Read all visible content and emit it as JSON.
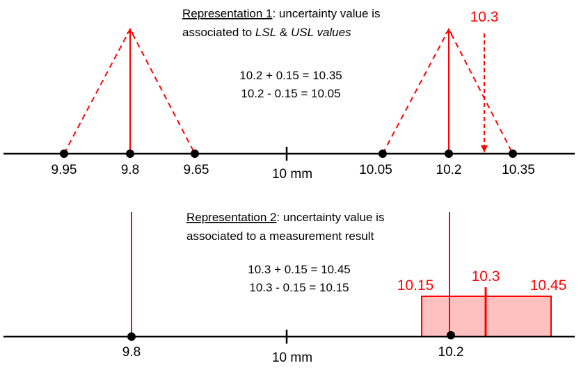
{
  "representation1": {
    "heading": "Representation 1",
    "line1_rest": ": uncertainty value is",
    "line2_a": "associated to ",
    "line2_lsl": "LSL",
    "line2_amp": " & ",
    "line2_usl": "USL values",
    "eq1": "10.2 + 0.15 = 10.35",
    "eq2": "10.2 - 0.15 = 10.05",
    "measurement_label": "10.3",
    "axis_labels": [
      "9.95",
      "9.8",
      "9.65",
      "10.05",
      "10.2",
      "10.35"
    ],
    "center_label": "10 mm"
  },
  "representation2": {
    "heading": "Representation 2",
    "line1_rest": ": uncertainty value is",
    "line2": "associated to a measurement result",
    "eq1": "10.3 + 0.15 = 10.45",
    "eq2": "10.3 - 0.15 = 10.15",
    "interval_low": "10.15",
    "interval_mid": "10.3",
    "interval_high": "10.45",
    "axis_labels": [
      "9.8",
      "10.2"
    ],
    "center_label": "10 mm"
  },
  "colors": {
    "accent": "#ff0000",
    "interval_fill": "#ffc0c0",
    "axis": "#000000"
  }
}
